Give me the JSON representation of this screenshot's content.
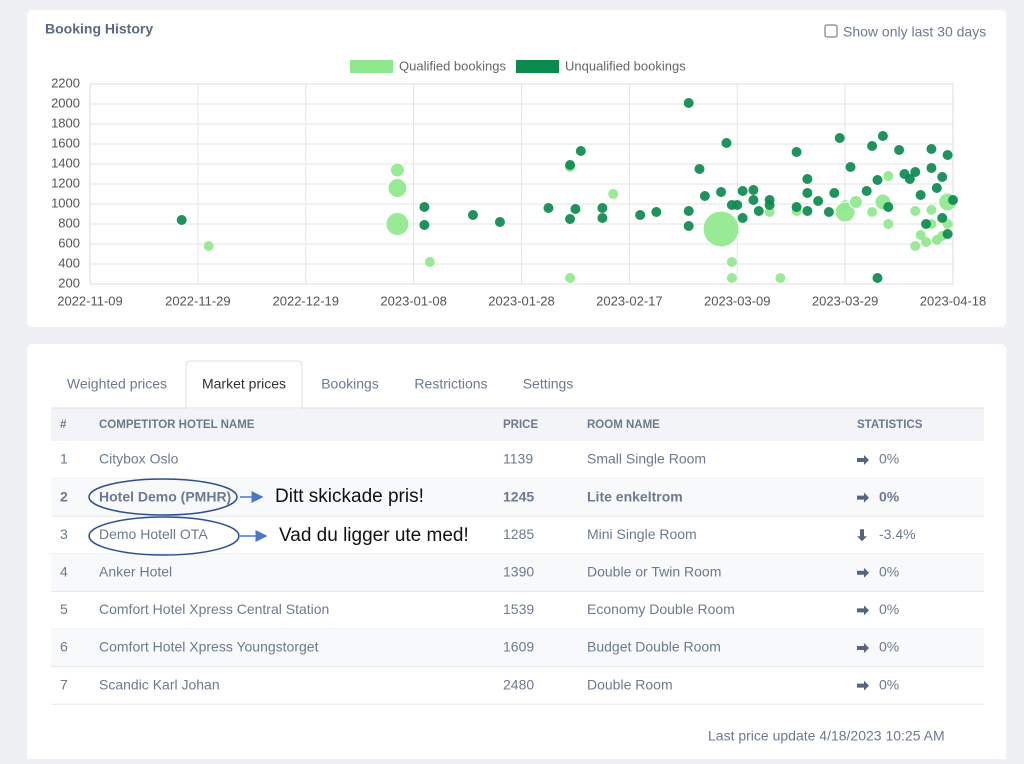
{
  "chart_data": {
    "type": "scatter",
    "title": "Booking History",
    "grid": true,
    "legend": "top",
    "xlim": [
      "2022-11-09",
      "2023-04-18"
    ],
    "xticks": [
      "2022-11-09",
      "2022-11-29",
      "2022-12-19",
      "2023-01-08",
      "2023-01-28",
      "2023-02-17",
      "2023-03-09",
      "2023-03-29",
      "2023-04-18"
    ],
    "ylim": [
      200,
      2200
    ],
    "yticks": [
      200,
      400,
      600,
      800,
      1000,
      1200,
      1400,
      1600,
      1800,
      2000,
      2200
    ],
    "series": [
      {
        "name": "Qualified bookings",
        "color": "#90e88c",
        "x": [
          "2022-12-01",
          "2023-01-05",
          "2023-01-05",
          "2023-01-05",
          "2023-01-11",
          "2023-02-06",
          "2023-02-06",
          "2023-02-14",
          "2023-03-06",
          "2023-03-08",
          "2023-03-08",
          "2023-03-15",
          "2023-03-17",
          "2023-03-20",
          "2023-03-29",
          "2023-03-29",
          "2023-03-31",
          "2023-04-03",
          "2023-04-05",
          "2023-04-06",
          "2023-04-06",
          "2023-04-11",
          "2023-04-11",
          "2023-04-12",
          "2023-04-13",
          "2023-04-14",
          "2023-04-14",
          "2023-04-15",
          "2023-04-16",
          "2023-04-17",
          "2023-04-17"
        ],
        "values": [
          580,
          1340,
          1160,
          800,
          420,
          1370,
          260,
          1100,
          750,
          420,
          260,
          920,
          260,
          930,
          990,
          920,
          1020,
          920,
          1020,
          1280,
          800,
          580,
          930,
          690,
          620,
          940,
          800,
          640,
          680,
          1020,
          800
        ],
        "sizes": [
          1,
          1.4,
          1.9,
          2.3,
          1,
          1,
          1,
          1,
          3.6,
          1,
          1,
          1,
          1,
          1,
          1,
          2,
          1.3,
          1,
          1.6,
          1,
          1,
          1,
          1,
          1,
          1,
          1,
          1,
          1,
          1,
          1.8,
          1
        ]
      },
      {
        "name": "Unqualified bookings",
        "color": "#0b8a4e",
        "x": [
          "2022-11-26",
          "2023-01-10",
          "2023-01-10",
          "2023-01-19",
          "2023-01-24",
          "2023-02-02",
          "2023-02-06",
          "2023-02-06",
          "2023-02-07",
          "2023-02-08",
          "2023-02-12",
          "2023-02-12",
          "2023-02-19",
          "2023-02-22",
          "2023-02-28",
          "2023-02-28",
          "2023-02-28",
          "2023-03-02",
          "2023-03-03",
          "2023-03-06",
          "2023-03-07",
          "2023-03-08",
          "2023-03-09",
          "2023-03-10",
          "2023-03-10",
          "2023-03-12",
          "2023-03-12",
          "2023-03-13",
          "2023-03-15",
          "2023-03-15",
          "2023-03-20",
          "2023-03-20",
          "2023-03-22",
          "2023-03-22",
          "2023-03-22",
          "2023-03-24",
          "2023-03-26",
          "2023-03-27",
          "2023-03-28",
          "2023-03-30",
          "2023-04-02",
          "2023-04-03",
          "2023-04-04",
          "2023-04-04",
          "2023-04-05",
          "2023-04-06",
          "2023-04-08",
          "2023-04-09",
          "2023-04-10",
          "2023-04-11",
          "2023-04-12",
          "2023-04-13",
          "2023-04-14",
          "2023-04-14",
          "2023-04-15",
          "2023-04-16",
          "2023-04-16",
          "2023-04-17",
          "2023-04-17",
          "2023-04-18"
        ],
        "values": [
          840,
          970,
          790,
          890,
          820,
          960,
          1390,
          850,
          950,
          1530,
          960,
          860,
          890,
          920,
          2010,
          930,
          780,
          1350,
          1080,
          1120,
          1610,
          990,
          990,
          1130,
          860,
          1140,
          1040,
          930,
          990,
          1040,
          1520,
          970,
          1250,
          1110,
          930,
          1030,
          920,
          1110,
          1660,
          1370,
          1130,
          1580,
          1240,
          260,
          1680,
          970,
          1540,
          1300,
          1250,
          1320,
          1090,
          800,
          1550,
          1360,
          1160,
          1270,
          860,
          1490,
          700,
          1040
        ]
      }
    ]
  },
  "filter": {
    "label": "Show only last 30 days",
    "checked": false
  },
  "tabs": {
    "items": [
      "Weighted prices",
      "Market prices",
      "Bookings",
      "Restrictions",
      "Settings"
    ],
    "active": 1
  },
  "table": {
    "columns": [
      "#",
      "COMPETITOR HOTEL NAME",
      "PRICE",
      "ROOM NAME",
      "STATISTICS"
    ],
    "bold_row": 1,
    "rows": [
      [
        1,
        "Citybox Oslo",
        1139,
        "Small Single Room",
        "0%"
      ],
      [
        2,
        "Hotel Demo (PMHR)",
        1245,
        "Lite enkeltrom",
        "0%"
      ],
      [
        3,
        "Demo Hotell OTA",
        1285,
        "Mini Single Room",
        "-3.4%"
      ],
      [
        4,
        "Anker Hotel",
        1390,
        "Double or Twin Room",
        "0%"
      ],
      [
        5,
        "Comfort Hotel Xpress Central Station",
        1539,
        "Economy Double Room",
        "0%"
      ],
      [
        6,
        "Comfort Hotel Xpress Youngstorget",
        1609,
        "Budget Double Room",
        "0%"
      ],
      [
        7,
        "Scandic Karl Johan",
        2480,
        "Double Room",
        "0%"
      ]
    ]
  },
  "annotations": [
    "Ditt skickade pris!",
    "Vad du ligger ute med!"
  ],
  "footer": "Last price update 4/18/2023 10:25 AM"
}
